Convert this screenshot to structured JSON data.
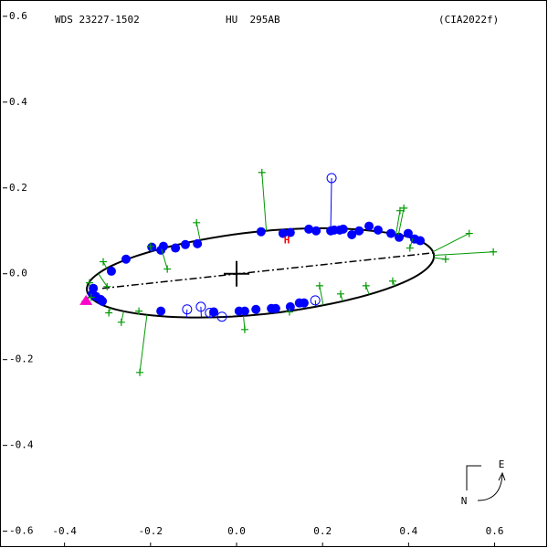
{
  "chart_data": {
    "type": "orbit",
    "header": [
      "WDS 23227-1502",
      "HU  295AB",
      "(CIA2022f)"
    ],
    "xlim": [
      -0.55,
      0.722
    ],
    "ylim": [
      -0.637,
      0.638
    ],
    "xticks": [
      -0.4,
      -0.2,
      {
        "value": 0,
        "label": "0.0"
      },
      0.2,
      0.4,
      0.6
    ],
    "yticks": [
      0.6,
      0.4,
      0.2,
      {
        "value": 0,
        "label": "0.0"
      },
      -0.2,
      -0.4,
      -0.6
    ],
    "orbit": {
      "color": "#000000",
      "x": [
        0.459,
        0.431,
        0.347,
        0.219,
        0.065,
        -0.09,
        -0.223,
        -0.314,
        -0.348,
        -0.321,
        -0.237,
        -0.108,
        0.046,
        0.201,
        0.333,
        0.425
      ],
      "y": [
        0.043,
        0.003,
        -0.036,
        -0.07,
        -0.094,
        -0.102,
        -0.094,
        -0.072,
        -0.038,
        0.001,
        0.04,
        0.074,
        0.098,
        0.106,
        0.098,
        0.077
      ]
    },
    "nodes_line": {
      "x": [
        -0.312,
        0.459
      ],
      "y": [
        -0.034,
        0.049
      ]
    },
    "center": {
      "x": 0,
      "y": 0
    },
    "points": [
      {
        "marker": "filled-circle",
        "color": "#0000ff",
        "x": [
          -0.333,
          -0.327,
          -0.316,
          -0.312,
          -0.335,
          -0.291,
          -0.257,
          -0.197,
          -0.176,
          -0.17,
          -0.142,
          -0.119,
          -0.091,
          0.057,
          0.108,
          0.125,
          0.168,
          0.185,
          0.219,
          0.227,
          0.24,
          0.248,
          0.268,
          0.285,
          0.308,
          0.329,
          0.359,
          0.378,
          0.399,
          0.414,
          0.427,
          -0.176,
          -0.053,
          0.006,
          0.019,
          0.045,
          0.081,
          0.091,
          0.125,
          0.146,
          0.157
        ],
        "y": [
          -0.034,
          -0.053,
          -0.06,
          -0.064,
          -0.047,
          0.006,
          0.034,
          0.062,
          0.055,
          0.064,
          0.06,
          0.068,
          0.07,
          0.098,
          0.094,
          0.096,
          0.104,
          0.1,
          0.1,
          0.102,
          0.102,
          0.104,
          0.091,
          0.1,
          0.111,
          0.102,
          0.094,
          0.085,
          0.094,
          0.081,
          0.077,
          -0.087,
          -0.089,
          -0.087,
          -0.087,
          -0.083,
          -0.081,
          -0.081,
          -0.077,
          -0.068,
          -0.068
        ]
      },
      {
        "marker": "open-circle",
        "color": "#0000ff",
        "x": [
          -0.115,
          -0.083,
          -0.062,
          -0.034,
          0.183,
          0.221
        ],
        "y": [
          -0.083,
          -0.077,
          -0.091,
          -0.1,
          -0.062,
          0.223
        ]
      },
      {
        "marker": "plus",
        "color": "#009900",
        "x": [
          0.059,
          -0.093,
          -0.227,
          -0.225,
          -0.268,
          -0.297,
          -0.342,
          -0.338,
          -0.301,
          -0.161,
          -0.2,
          0.019,
          0.363,
          0.486,
          0.541,
          0.597,
          0.403,
          0.38,
          0.389,
          0.301,
          0.242,
          0.193,
          0.123,
          -0.31,
          -0.352
        ],
        "y": [
          0.236,
          0.119,
          -0.087,
          -0.23,
          -0.113,
          -0.091,
          -0.021,
          -0.055,
          -0.03,
          0.011,
          0.064,
          -0.13,
          -0.017,
          0.034,
          0.094,
          0.051,
          0.06,
          0.147,
          0.153,
          -0.028,
          -0.047,
          -0.028,
          -0.089,
          0.028,
          -0.064
        ]
      },
      {
        "marker": "triangle",
        "color": "#ff00cc",
        "x": [
          -0.35
        ],
        "y": [
          -0.062
        ]
      }
    ],
    "annotations": [
      {
        "text": "H",
        "color": "#ff0000",
        "x": 0.117,
        "y": 0.077
      }
    ],
    "compass": {
      "e": "E",
      "n": "N"
    }
  }
}
